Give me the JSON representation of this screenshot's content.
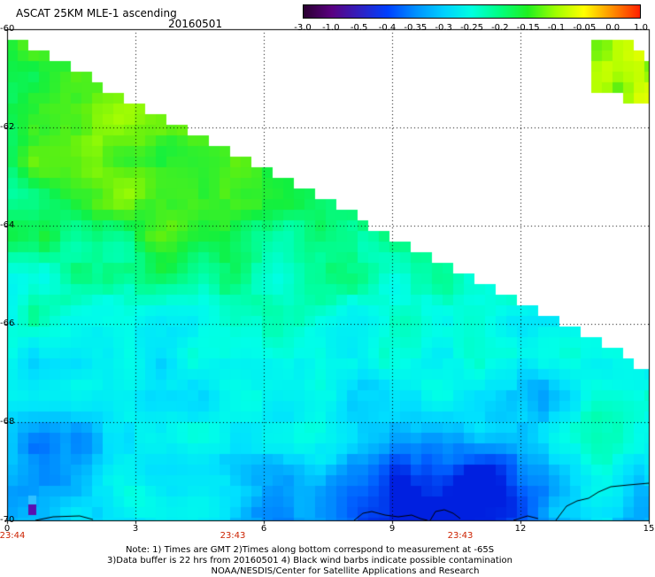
{
  "header": {
    "title": "ASCAT 25KM MLE-1 ascending",
    "date": "20160501"
  },
  "colorbar": {
    "labels": [
      "-3.0",
      "-1.0",
      "-0.5",
      "-0.4",
      "-0.35",
      "-0.3",
      "-0.25",
      "-0.2",
      "-0.15",
      "-0.1",
      "-0.05",
      "0.0",
      "1.0"
    ],
    "colors": [
      "#2a0030",
      "#5a0080",
      "#3020c0",
      "#0040ff",
      "#0090ff",
      "#00d0ff",
      "#00ffe0",
      "#00ff80",
      "#20f020",
      "#a0ff00",
      "#ffff00",
      "#ff9000",
      "#ff2000"
    ]
  },
  "axes": {
    "y_labels": [
      "-60",
      "-62",
      "-64",
      "-66",
      "-68",
      "-70"
    ],
    "x_labels": [
      "0",
      "3",
      "6",
      "9",
      "12",
      "15"
    ],
    "time_labels": [
      "23:44",
      "23:43",
      "23:43"
    ]
  },
  "notes": {
    "line1": "Note: 1) Times are GMT 2)Times along bottom correspond to measurement at -65S",
    "line2": "3)Data buffer is 22 hrs from 20160501 4) Black wind barbs indicate possible contamination",
    "line3": "NOAA/NESDIS/Center for Satellite Applications and Research"
  }
}
